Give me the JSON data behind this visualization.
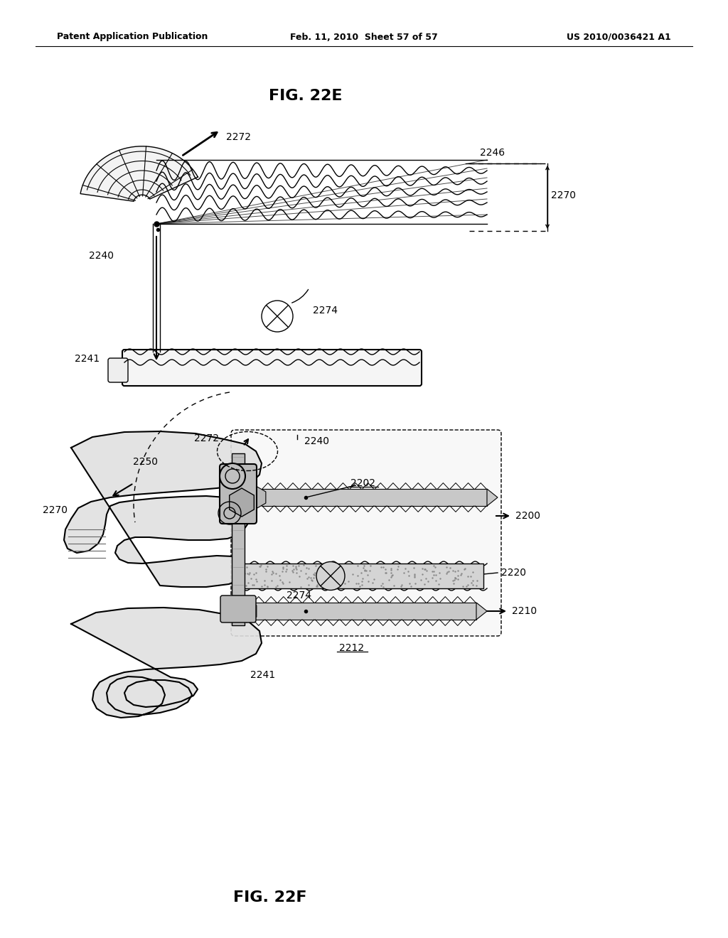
{
  "background_color": "#ffffff",
  "header": {
    "left": "Patent Application Publication",
    "center": "Feb. 11, 2010  Sheet 57 of 57",
    "right": "US 2010/0036421 A1"
  },
  "fig22e_title": "FIG. 22E",
  "fig22f_title": "FIG. 22F",
  "page_width": 10.24,
  "page_height": 13.2,
  "dpi": 100
}
